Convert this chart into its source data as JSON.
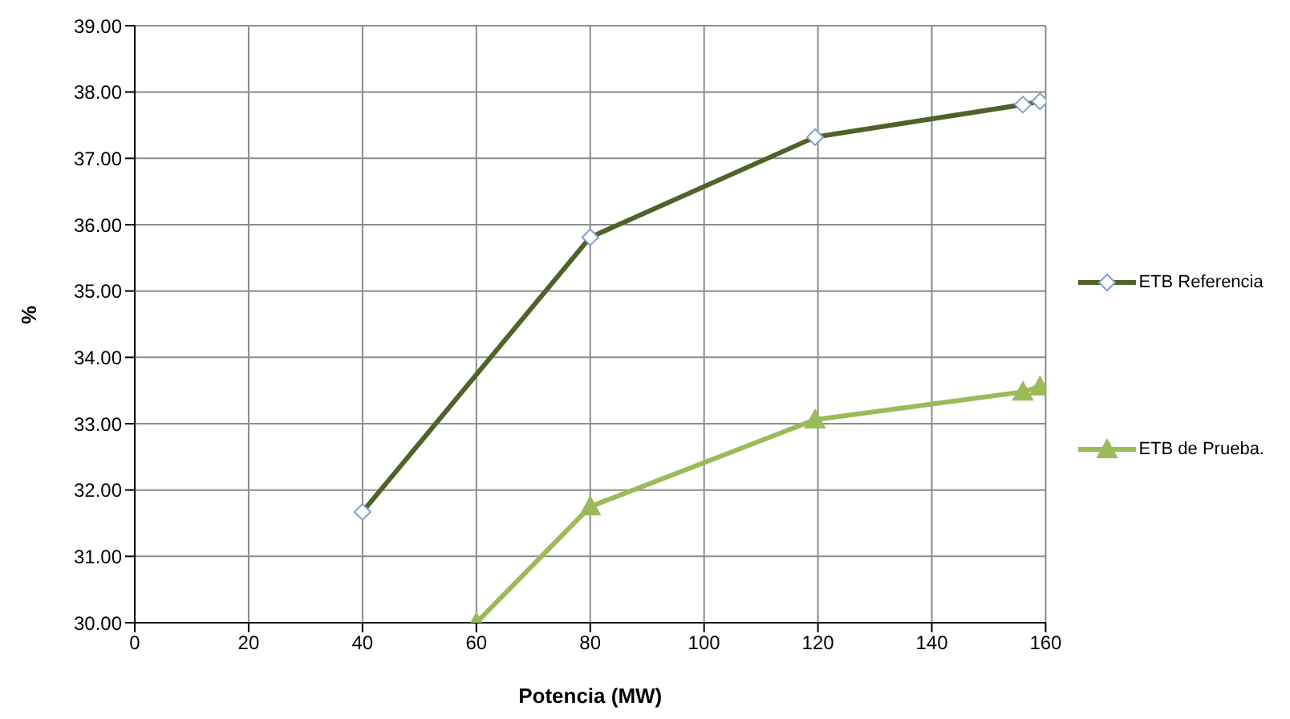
{
  "chart_data": {
    "type": "line",
    "xlabel": "Potencia (MW)",
    "ylabel": "%",
    "xlim": [
      0,
      160
    ],
    "xticks": [
      0,
      20,
      40,
      60,
      80,
      100,
      120,
      140,
      160
    ],
    "ylim": [
      30,
      39
    ],
    "yticks": [
      {
        "value": 30,
        "label": "30.00"
      },
      {
        "value": 31,
        "label": "31.00"
      },
      {
        "value": 32,
        "label": "32.00"
      },
      {
        "value": 33,
        "label": "33.00"
      },
      {
        "value": 34,
        "label": "34.00"
      },
      {
        "value": 35,
        "label": "35.00"
      },
      {
        "value": 36,
        "label": "36.00"
      },
      {
        "value": 37,
        "label": "37.00"
      },
      {
        "value": 38,
        "label": "38.00"
      },
      {
        "value": 39,
        "label": "39.00"
      }
    ],
    "grid": true,
    "legend": "right",
    "series": [
      {
        "name": "ETB Referencia",
        "color": "#4f6228",
        "marker": "diamond",
        "x": [
          40,
          80,
          119.5,
          156,
          159
        ],
        "values": [
          31.67,
          35.81,
          37.32,
          37.81,
          37.86
        ]
      },
      {
        "name": "ETB de Prueba.",
        "color": "#9bbb59",
        "marker": "triangle",
        "x": [
          60,
          80,
          119.5,
          156,
          159
        ],
        "values": [
          30,
          31.75,
          33.06,
          33.48,
          33.56
        ]
      }
    ]
  }
}
